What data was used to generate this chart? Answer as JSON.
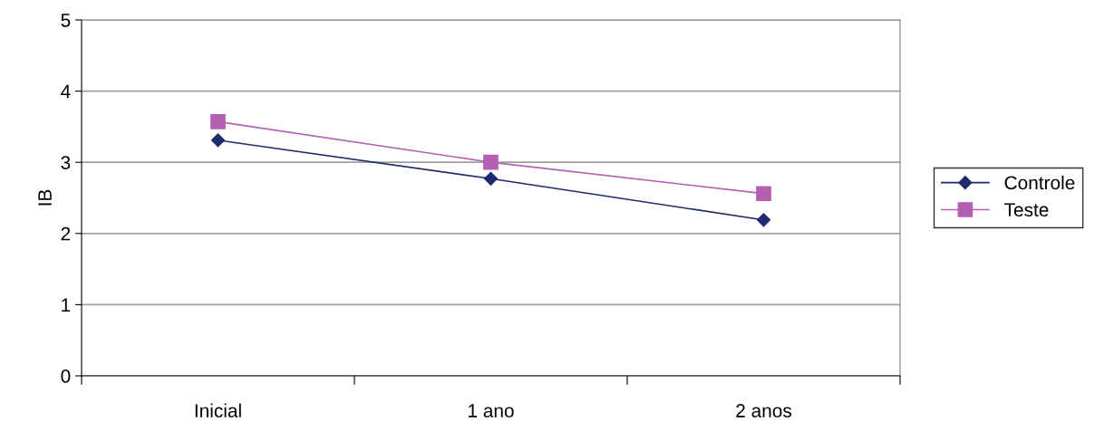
{
  "chart_data": {
    "type": "line",
    "ylabel": "IB",
    "categories": [
      "Inicial",
      "1 ano",
      "2 anos"
    ],
    "series": [
      {
        "name": "Controle",
        "color": "#1f2a6e",
        "values": [
          3.31,
          2.77,
          2.19
        ],
        "marker": "diamond"
      },
      {
        "name": "Teste",
        "color": "#b35fb3",
        "values": [
          3.57,
          3.0,
          2.56
        ],
        "marker": "square"
      }
    ],
    "ylim": [
      0,
      5
    ],
    "yticks": [
      0,
      1,
      2,
      3,
      4,
      5
    ],
    "grid": "y",
    "legend": "right"
  }
}
